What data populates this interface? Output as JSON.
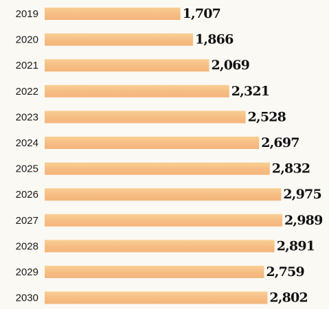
{
  "chart_data": {
    "type": "bar",
    "orientation": "horizontal",
    "title": "",
    "xlabel": "",
    "ylabel": "",
    "categories": [
      "2019",
      "2020",
      "2021",
      "2022",
      "2023",
      "2024",
      "2025",
      "2026",
      "2027",
      "2028",
      "2029",
      "2030"
    ],
    "values": [
      1707,
      1866,
      2069,
      2321,
      2528,
      2697,
      2832,
      2975,
      2989,
      2891,
      2759,
      2802
    ],
    "value_labels": [
      "1,707",
      "1,866",
      "2,069",
      "2,321",
      "2,528",
      "2,697",
      "2,832",
      "2,975",
      "2,989",
      "2,891",
      "2,759",
      "2,802"
    ],
    "xlim": [
      0,
      2989
    ],
    "grid": false,
    "legend": "none",
    "bar_color": "#f6be84",
    "bar_highlight_color": "#f9cf95"
  }
}
